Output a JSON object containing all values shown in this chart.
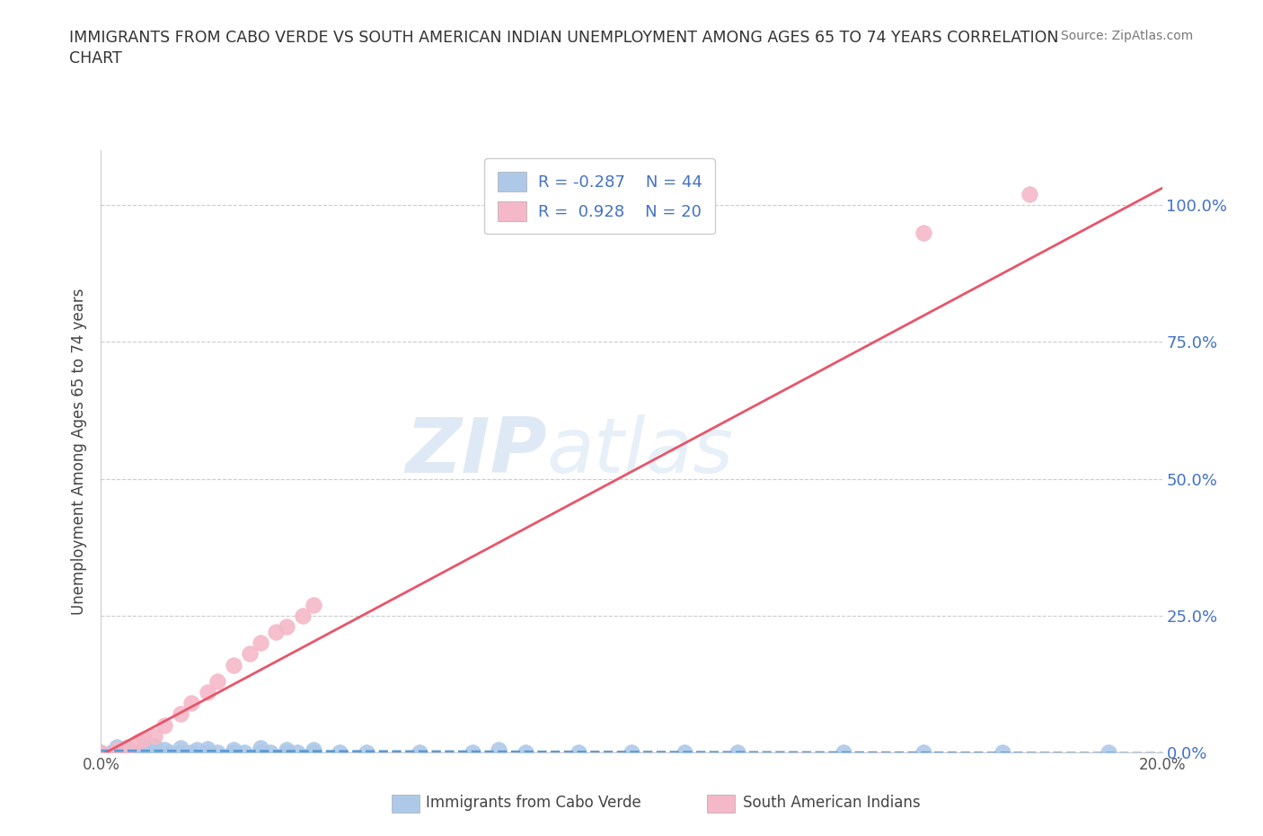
{
  "title_line1": "IMMIGRANTS FROM CABO VERDE VS SOUTH AMERICAN INDIAN UNEMPLOYMENT AMONG AGES 65 TO 74 YEARS CORRELATION",
  "title_line2": "CHART",
  "source": "Source: ZipAtlas.com",
  "ylabel": "Unemployment Among Ages 65 to 74 years",
  "watermark_zip": "ZIP",
  "watermark_atlas": "atlas",
  "cabo_verde_R": -0.287,
  "cabo_verde_N": 44,
  "south_american_R": 0.928,
  "south_american_N": 20,
  "cabo_verde_color": "#aec9e8",
  "cabo_verde_edge": "#aec9e8",
  "south_american_color": "#f4b8c8",
  "south_american_edge": "#f4b8c8",
  "cabo_verde_line_color": "#5b9bd5",
  "south_american_line_color": "#e8556a",
  "legend_text_color": "#4472c4",
  "right_axis_color": "#4472c4",
  "grid_color": "#cccccc",
  "bg_color": "#ffffff",
  "axis_color": "#cccccc",
  "ytick_vals": [
    0.0,
    0.25,
    0.5,
    0.75,
    1.0
  ],
  "legend_labels": [
    "Immigrants from Cabo Verde",
    "South American Indians"
  ],
  "cabo_verde_x": [
    0.0,
    0.002,
    0.003,
    0.005,
    0.005,
    0.007,
    0.008,
    0.01,
    0.01,
    0.01,
    0.012,
    0.013,
    0.015,
    0.015,
    0.017,
    0.018,
    0.02,
    0.02,
    0.022,
    0.025,
    0.025,
    0.027,
    0.03,
    0.03,
    0.032,
    0.035,
    0.035,
    0.037,
    0.04,
    0.04,
    0.045,
    0.05,
    0.06,
    0.07,
    0.075,
    0.08,
    0.09,
    0.1,
    0.11,
    0.12,
    0.14,
    0.155,
    0.17,
    0.19
  ],
  "cabo_verde_y": [
    0.0,
    0.0,
    0.01,
    0.0,
    0.005,
    0.0,
    0.01,
    0.0,
    0.0,
    0.012,
    0.005,
    0.0,
    0.0,
    0.008,
    0.0,
    0.005,
    0.0,
    0.007,
    0.0,
    0.0,
    0.005,
    0.0,
    0.0,
    0.008,
    0.0,
    0.0,
    0.005,
    0.0,
    0.0,
    0.005,
    0.0,
    0.0,
    0.0,
    0.0,
    0.005,
    0.0,
    0.0,
    0.0,
    0.0,
    0.0,
    0.0,
    0.0,
    0.0,
    0.0
  ],
  "south_american_x": [
    0.0,
    0.003,
    0.005,
    0.007,
    0.008,
    0.01,
    0.012,
    0.015,
    0.017,
    0.02,
    0.022,
    0.025,
    0.028,
    0.03,
    0.033,
    0.035,
    0.038,
    0.04,
    0.155,
    0.175
  ],
  "south_american_y": [
    0.0,
    0.005,
    0.01,
    0.02,
    0.025,
    0.03,
    0.05,
    0.07,
    0.09,
    0.11,
    0.13,
    0.16,
    0.18,
    0.2,
    0.22,
    0.23,
    0.25,
    0.27,
    0.95,
    1.02
  ]
}
